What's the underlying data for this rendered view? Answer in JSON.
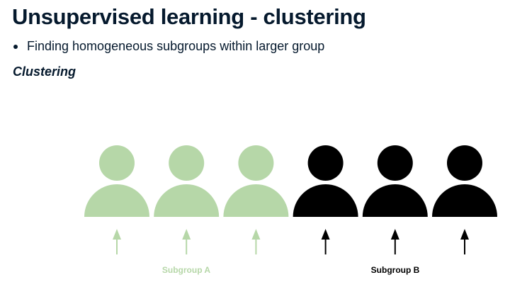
{
  "slide": {
    "title": "Unsupervised learning - clustering",
    "bullets": [
      "Finding homogeneous subgroups within larger group"
    ],
    "subheading": "Clustering"
  },
  "figure": {
    "people": [
      {
        "group": "A",
        "icon": "person-icon"
      },
      {
        "group": "A",
        "icon": "person-icon"
      },
      {
        "group": "A",
        "icon": "person-icon"
      },
      {
        "group": "B",
        "icon": "person-icon"
      },
      {
        "group": "B",
        "icon": "person-icon"
      },
      {
        "group": "B",
        "icon": "person-icon"
      }
    ],
    "arrow_icon": "arrow-up-icon",
    "groups": {
      "a": {
        "label": "Subgroup A",
        "color": "#b6d7a8"
      },
      "b": {
        "label": "Subgroup B",
        "color": "#000000"
      }
    }
  }
}
